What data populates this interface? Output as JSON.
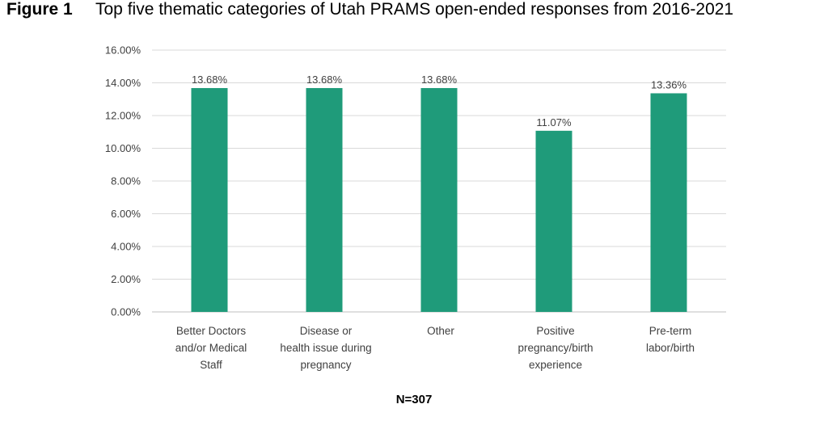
{
  "figure": {
    "label": "Figure 1",
    "title": "Top five thematic categories of Utah PRAMS open-ended responses from 2016-2021",
    "footnote": "N=307"
  },
  "chart_data": {
    "type": "bar",
    "categories": [
      [
        "Better Doctors",
        "and/or Medical",
        "Staff"
      ],
      [
        "Disease or",
        "health issue during",
        "pregnancy"
      ],
      [
        "Other"
      ],
      [
        "Positive",
        "pregnancy/birth",
        "experience"
      ],
      [
        "Pre-term",
        "labor/birth"
      ]
    ],
    "values": [
      13.68,
      13.68,
      13.68,
      11.07,
      13.36
    ],
    "data_labels": [
      "13.68%",
      "13.68%",
      "13.68%",
      "11.07%",
      "13.36%"
    ],
    "ylim": [
      0,
      16
    ],
    "yticks": [
      "0.00%",
      "2.00%",
      "4.00%",
      "6.00%",
      "8.00%",
      "10.00%",
      "12.00%",
      "14.00%",
      "16.00%"
    ],
    "grid": true,
    "legend": "none",
    "bar_color": "#1f9b7a"
  }
}
